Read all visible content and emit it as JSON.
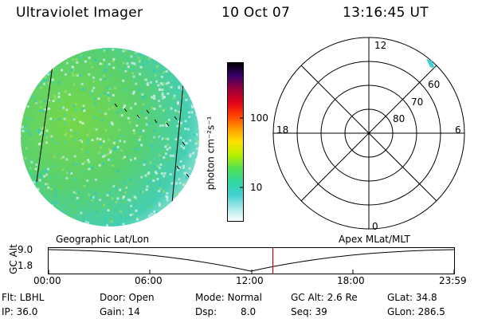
{
  "header": {
    "instrument": "Ultraviolet Imager",
    "date": "10 Oct 07",
    "time": "13:16:45 UT"
  },
  "colorbar": {
    "unit_label": "photon cm⁻²s⁻¹",
    "ticks": [
      "100",
      "10"
    ],
    "stops": [
      "#000000",
      "#3a006a",
      "#9a003a",
      "#e0001a",
      "#ff4000",
      "#ff9a00",
      "#ffe000",
      "#b8f000",
      "#50e050",
      "#30d8a0",
      "#40d0d0",
      "#a8e8e8",
      "#ffffff"
    ]
  },
  "polar": {
    "mlt_labels": {
      "top": "12",
      "bottom": "0",
      "left": "18",
      "right": "6"
    },
    "lat_labels": [
      "60",
      "70",
      "80"
    ]
  },
  "timeline": {
    "left_label": "Geographic Lat/Lon",
    "right_label": "Apex MLat/MLT",
    "axis_title": "GC Alt",
    "y_ticks": [
      "9.0",
      "1.8"
    ],
    "x_ticks": [
      "00:00",
      "06:00",
      "12:00",
      "18:00",
      "23:59"
    ],
    "current_time_fraction": 0.553
  },
  "status": {
    "flt": "Flt: LBHL",
    "ip": "IP: 36.0",
    "door": "Door: Open",
    "gain": "Gain: 14",
    "mode": "Mode: Normal",
    "dsp_label": "Dsp:",
    "dsp_value": "8.0",
    "gcalt": "GC Alt: 2.6 Re",
    "seq": "Seq: 39",
    "glat": "GLat:  34.8",
    "glon": "GLon: 286.5"
  },
  "colors": {
    "accent_marker": "#d00000"
  }
}
